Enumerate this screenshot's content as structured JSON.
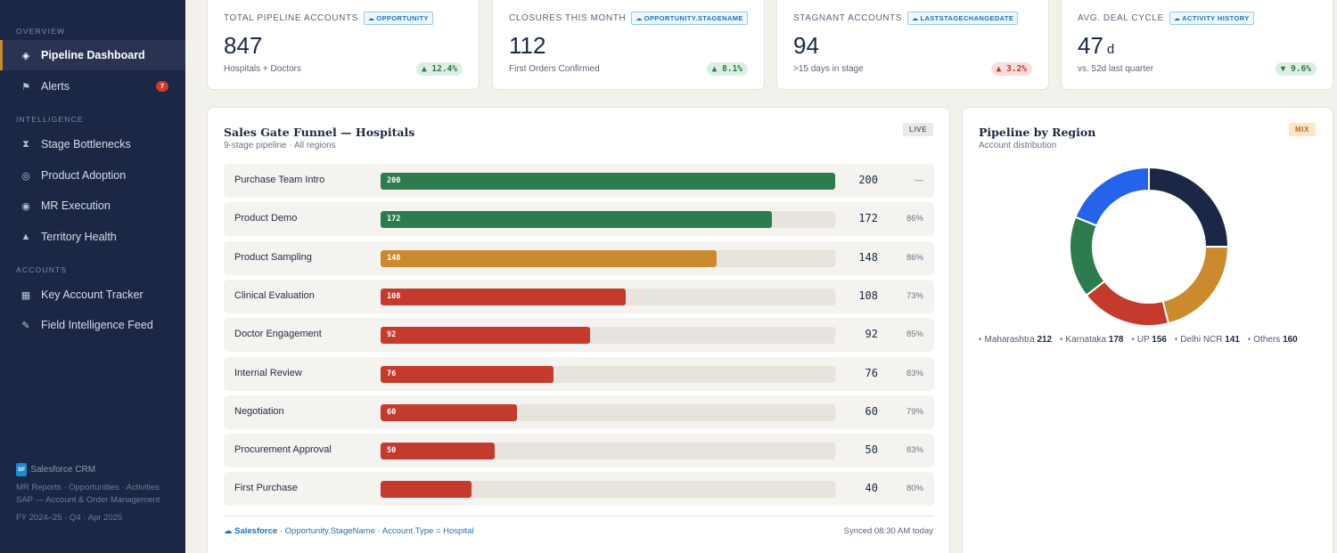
{
  "sidebar": {
    "sections": [
      {
        "label": "OVERVIEW"
      },
      {
        "label": "INTELLIGENCE"
      },
      {
        "label": "ACCOUNTS"
      }
    ],
    "items": [
      {
        "label": "Pipeline Dashboard",
        "icon": "diamond-icon",
        "glyph": "◈"
      },
      {
        "label": "Alerts",
        "icon": "flag-icon",
        "glyph": "⚑",
        "badge": "7"
      },
      {
        "label": "Stage Bottlenecks",
        "icon": "hourglass-icon",
        "glyph": "⧗"
      },
      {
        "label": "Product Adoption",
        "icon": "target-icon",
        "glyph": "◎"
      },
      {
        "label": "MR Execution",
        "icon": "radio-icon",
        "glyph": "◉"
      },
      {
        "label": "Territory Health",
        "icon": "triangle-icon",
        "glyph": "▲"
      },
      {
        "label": "Key Account Tracker",
        "icon": "grid-icon",
        "glyph": "▦"
      },
      {
        "label": "Field Intelligence Feed",
        "icon": "pencil-icon",
        "glyph": "✎"
      }
    ],
    "footer": {
      "badge": "SF",
      "crm": "Salesforce CRM",
      "line1": "MR Reports · Opportunities · Activities",
      "line2": "SAP — Account & Order Management",
      "period": "FY 2024–25 · Q4 · Apr 2025"
    }
  },
  "kpis": [
    {
      "title": "TOTAL PIPELINE ACCOUNTS",
      "source": "OPPORTUNITY",
      "value": "847",
      "unit": "",
      "sub": "Hospitals + Doctors",
      "delta": "▲ 12.4%",
      "trend": "up"
    },
    {
      "title": "CLOSURES THIS MONTH",
      "source": "OPPORTUNITY.STAGENAME",
      "value": "112",
      "unit": "",
      "sub": "First Orders Confirmed",
      "delta": "▲ 8.1%",
      "trend": "up"
    },
    {
      "title": "STAGNANT ACCOUNTS",
      "source": "LASTSTAGECHANGEDATE",
      "value": "94",
      "unit": "",
      "sub": ">15 days in stage",
      "delta": "▲ 3.2%",
      "trend": "down"
    },
    {
      "title": "AVG. DEAL CYCLE",
      "source": "ACTIVITY HISTORY",
      "value": "47",
      "unit": "d",
      "sub": "vs. 52d last quarter",
      "delta": "▼ 9.6%",
      "trend": "up"
    }
  ],
  "funnel": {
    "title": "Sales Gate Funnel — Hospitals",
    "subtitle": "9-stage pipeline · All regions",
    "badge": "LIVE",
    "max": 200,
    "stages": [
      {
        "name": "Purchase Team Intro",
        "value": 200,
        "bar_label": "200",
        "count": "200",
        "conversion": "—",
        "color": "#2e7b4f"
      },
      {
        "name": "Product Demo",
        "value": 172,
        "bar_label": "172",
        "count": "172",
        "conversion": "86%",
        "color": "#2e7b4f"
      },
      {
        "name": "Product Sampling",
        "value": 148,
        "bar_label": "148",
        "count": "148",
        "conversion": "86%",
        "color": "#cb8a2e"
      },
      {
        "name": "Clinical Evaluation",
        "value": 108,
        "bar_label": "108",
        "count": "108",
        "conversion": "73%",
        "color": "#c43b2e"
      },
      {
        "name": "Doctor Engagement",
        "value": 92,
        "bar_label": "92",
        "count": "92",
        "conversion": "85%",
        "color": "#c43b2e"
      },
      {
        "name": "Internal Review",
        "value": 76,
        "bar_label": "76",
        "count": "76",
        "conversion": "83%",
        "color": "#c43b2e"
      },
      {
        "name": "Negotiation",
        "value": 60,
        "bar_label": "60",
        "count": "60",
        "conversion": "79%",
        "color": "#c43b2e"
      },
      {
        "name": "Procurement Approval",
        "value": 50,
        "bar_label": "50",
        "count": "50",
        "conversion": "83%",
        "color": "#c43b2e"
      },
      {
        "name": "First Purchase",
        "value": 40,
        "bar_label": "",
        "count": "40",
        "conversion": "80%",
        "color": "#c43b2e"
      }
    ],
    "footer_brand": "Salesforce",
    "footer_fields": "· Opportunity.StageName · Account.Type = Hospital",
    "synced": "Synced 08:30 AM today"
  },
  "region": {
    "title": "Pipeline by Region",
    "subtitle": "Account distribution",
    "badge": "MIX",
    "chart_data": {
      "type": "pie",
      "categories": [
        "Maharashtra",
        "Karnataka",
        "UP",
        "Delhi NCR",
        "Others"
      ],
      "values": [
        212,
        178,
        156,
        141,
        160
      ],
      "colors": [
        "#1b2744",
        "#cb8a2e",
        "#c43b2e",
        "#2e7b4f",
        "#2563eb"
      ]
    },
    "legend": [
      {
        "label": "Maharashtra",
        "value": "212"
      },
      {
        "label": "Karnataka",
        "value": "178"
      },
      {
        "label": "UP",
        "value": "156"
      },
      {
        "label": "Delhi NCR",
        "value": "141"
      },
      {
        "label": "Others",
        "value": "160"
      }
    ]
  }
}
